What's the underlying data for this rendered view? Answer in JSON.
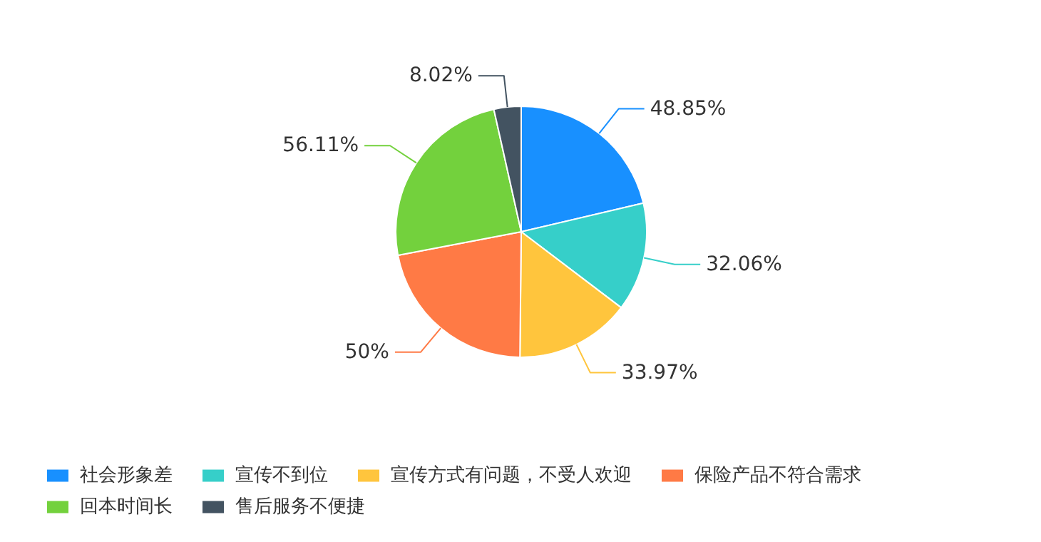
{
  "chart_data": {
    "type": "pie",
    "categories": [
      "社会形象差",
      "宣传不到位",
      "宣传方式有问题，不受人欢迎",
      "保险产品不符合需求",
      "回本时间长",
      "售后服务不便捷"
    ],
    "values": [
      48.85,
      32.06,
      33.97,
      50,
      56.11,
      8.02
    ],
    "colors": [
      "#1890ff",
      "#36cfc9",
      "#ffc53d",
      "#ff7a45",
      "#73d13d",
      "#435361"
    ],
    "value_labels": [
      "48.85%",
      "32.06%",
      "33.97%",
      "50%",
      "56.11%",
      "8.02%"
    ],
    "legend": "bottom"
  }
}
